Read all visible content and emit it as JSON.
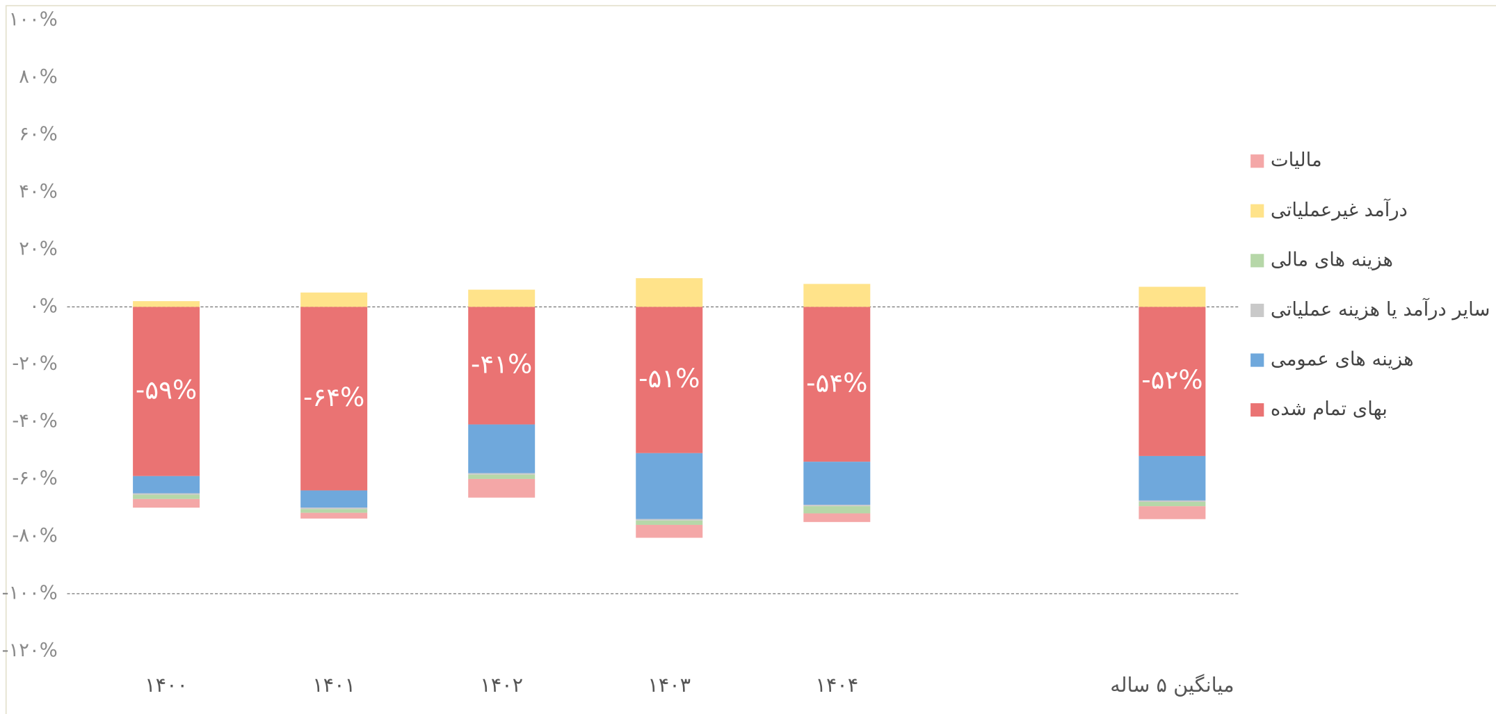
{
  "chart_data": {
    "type": "stacked_bar",
    "categories": [
      "۱۴۰۰",
      "۱۴۰۱",
      "۱۴۰۲",
      "۱۴۰۳",
      "۱۴۰۴",
      null,
      "میانگین ۵ ساله"
    ],
    "series": [
      {
        "name": "مالیات",
        "color": "#f4a7a7",
        "values": [
          -3,
          -2,
          -6.5,
          -4.5,
          -3,
          null,
          -4.5
        ]
      },
      {
        "name": "درآمد غیرعملیاتی",
        "color": "#ffe38a",
        "values": [
          2,
          5,
          6,
          10,
          8,
          null,
          7
        ]
      },
      {
        "name": "هزینه های مالی",
        "color": "#b6d7a8",
        "values": [
          -1.5,
          -1.3,
          -1.5,
          -1.5,
          -2.5,
          null,
          -1.5
        ]
      },
      {
        "name": "سایر درآمد یا هزینه عملیاتی",
        "color": "#c9c9c9",
        "values": [
          -0.5,
          -0.5,
          -0.5,
          -0.5,
          -0.5,
          null,
          -0.5
        ]
      },
      {
        "name": "هزینه های عمومی",
        "color": "#6fa8dc",
        "values": [
          -6,
          -6,
          -17,
          -23,
          -15,
          null,
          -15.5
        ]
      },
      {
        "name": "بهای تمام شده",
        "color": "#ea7373",
        "values": [
          -59,
          -64,
          -41,
          -51,
          -54,
          null,
          -52
        ],
        "value_labels": [
          "-۵۹%",
          "-۶۴%",
          "-۴۱%",
          "-۵۱%",
          "-۵۴%",
          null,
          "-۵۲%"
        ]
      }
    ],
    "ylim": [
      -120,
      100
    ],
    "yticks": [
      {
        "value": 100,
        "label": "۱۰۰%"
      },
      {
        "value": 80,
        "label": "۸۰%"
      },
      {
        "value": 60,
        "label": "۶۰%"
      },
      {
        "value": 40,
        "label": "۴۰%"
      },
      {
        "value": 20,
        "label": "۲۰%"
      },
      {
        "value": 0,
        "label": "۰%"
      },
      {
        "value": -20,
        "label": "-۲۰%"
      },
      {
        "value": -40,
        "label": "-۴۰%"
      },
      {
        "value": -60,
        "label": "-۶۰%"
      },
      {
        "value": -80,
        "label": "-۸۰%"
      },
      {
        "value": -100,
        "label": "-۱۰۰%"
      },
      {
        "value": -120,
        "label": "-۱۲۰%"
      }
    ],
    "reference_lines": [
      0,
      -100
    ],
    "legend": "right"
  }
}
